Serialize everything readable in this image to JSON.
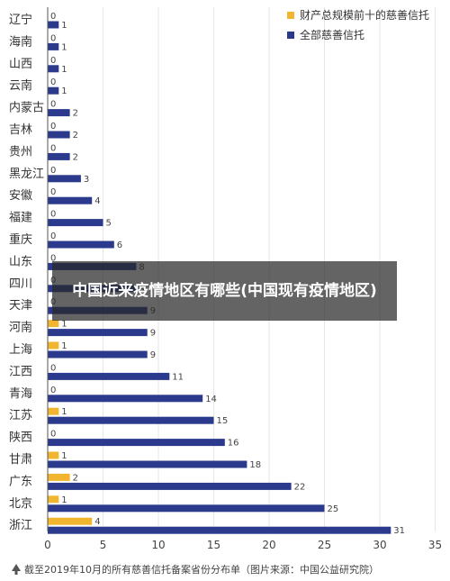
{
  "chart_data": {
    "type": "bar",
    "orientation": "horizontal",
    "categories": [
      "辽宁",
      "海南",
      "山西",
      "云南",
      "内蒙古",
      "吉林",
      "贵州",
      "黑龙江",
      "安徽",
      "福建",
      "重庆",
      "山东",
      "四川",
      "天津",
      "河南",
      "上海",
      "江西",
      "青海",
      "江苏",
      "陕西",
      "甘肃",
      "广东",
      "北京",
      "浙江"
    ],
    "series": [
      {
        "name": "财产总规模前十的慈善信托",
        "color": "#f2b52e",
        "values": [
          0,
          0,
          0,
          0,
          0,
          0,
          0,
          0,
          0,
          0,
          0,
          0,
          0,
          0,
          1,
          1,
          0,
          0,
          1,
          0,
          1,
          2,
          1,
          4
        ]
      },
      {
        "name": "全部慈善信托",
        "color": "#2b3a8c",
        "values": [
          1,
          1,
          1,
          1,
          2,
          2,
          2,
          3,
          4,
          5,
          6,
          8,
          8,
          9,
          9,
          9,
          11,
          14,
          15,
          16,
          18,
          22,
          25,
          31
        ]
      }
    ],
    "xlim": [
      0,
      35
    ],
    "xticks": [
      0,
      5,
      10,
      15,
      20,
      25,
      30,
      35
    ],
    "legend": "top-right",
    "footnote": "截至2019年10月的所有慈善信托备案省份分布单（图片来源：中国公益研究院）"
  },
  "overlay": {
    "title": "中国近来疫情地区有哪些(中国现有疫情地区)"
  }
}
